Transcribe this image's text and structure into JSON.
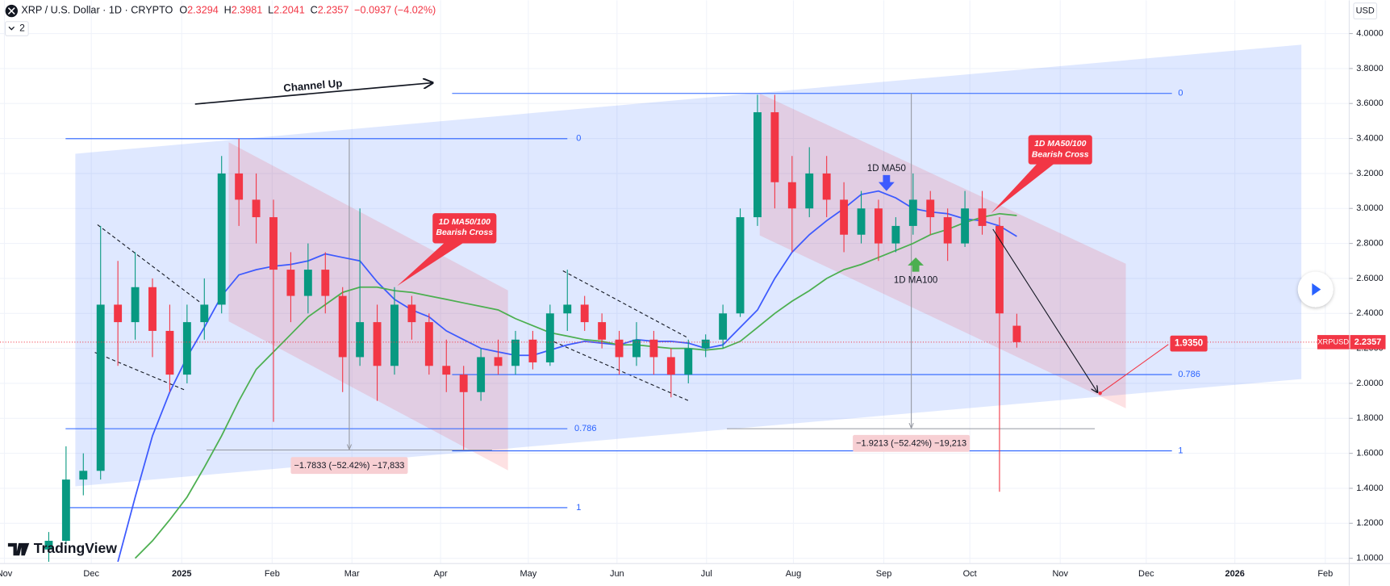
{
  "chart_data": {
    "type": "candlestick",
    "header": {
      "symbol": "XRP / U.S. Dollar · 1D · CRYPTO",
      "o_label": "O",
      "o": "2.3294",
      "h_label": "H",
      "h": "2.3981",
      "l_label": "L",
      "l": "2.2041",
      "c_label": "C",
      "c": "2.2357",
      "change": "−0.0937 (−4.02%)",
      "indicators": "2"
    },
    "currency": "USD",
    "logo": "TradingView",
    "x_axis_labels": [
      "Nov",
      "Dec",
      "2025",
      "Feb",
      "Mar",
      "Apr",
      "May",
      "Jun",
      "Jul",
      "Aug",
      "Sep",
      "Oct",
      "Nov",
      "Dec",
      "2026",
      "Feb"
    ],
    "ylim": [
      0.97,
      4.19
    ],
    "yticks": [
      {
        "value": 1.0,
        "label": "1.0000"
      },
      {
        "value": 1.2,
        "label": "1.2000"
      },
      {
        "value": 1.4,
        "label": "1.4000"
      },
      {
        "value": 1.6,
        "label": "1.6000"
      },
      {
        "value": 1.8,
        "label": "1.8000"
      },
      {
        "value": 2.0,
        "label": "2.0000"
      },
      {
        "value": 2.2,
        "label": "2.2000"
      },
      {
        "value": 2.4,
        "label": "2.4000"
      },
      {
        "value": 2.6,
        "label": "2.6000"
      },
      {
        "value": 2.8,
        "label": "2.8000"
      },
      {
        "value": 3.0,
        "label": "3.0000"
      },
      {
        "value": 3.2,
        "label": "3.2000"
      },
      {
        "value": 3.4,
        "label": "3.4000"
      },
      {
        "value": 3.6,
        "label": "3.6000"
      },
      {
        "value": 3.8,
        "label": "3.8000"
      },
      {
        "value": 4.0,
        "label": "4.0000"
      }
    ],
    "grid": true,
    "up_color": "#089981",
    "down_color": "#f23645",
    "candles": {
      "open": [
        1.05,
        1.1,
        1.45,
        1.5,
        2.45,
        2.35,
        2.55,
        2.3,
        2.05,
        2.35,
        2.45,
        3.2,
        3.05,
        2.95,
        2.65,
        2.5,
        2.65,
        2.5,
        2.15,
        2.35,
        2.1,
        2.45,
        2.35,
        2.1,
        2.05,
        1.95,
        2.15,
        2.1,
        2.25,
        2.12,
        2.4,
        2.45,
        2.35,
        2.25,
        2.15,
        2.25,
        2.15,
        2.05,
        2.2,
        2.25,
        2.4,
        2.95,
        3.55,
        3.15,
        3.0,
        3.2,
        3.05,
        2.85,
        3.0,
        2.8,
        2.9,
        3.05,
        2.95,
        2.8,
        3.0,
        2.9,
        2.3294
      ],
      "high": [
        1.15,
        1.64,
        1.6,
        2.9,
        2.7,
        2.75,
        2.6,
        2.45,
        2.45,
        2.6,
        3.3,
        3.4,
        3.2,
        3.05,
        2.75,
        2.8,
        2.75,
        2.55,
        3.0,
        2.45,
        2.55,
        2.5,
        2.4,
        2.25,
        2.1,
        2.2,
        2.25,
        2.3,
        2.3,
        2.45,
        2.65,
        2.5,
        2.4,
        2.3,
        2.35,
        2.3,
        2.2,
        2.25,
        2.28,
        2.45,
        3.0,
        3.65,
        3.65,
        3.3,
        3.35,
        3.3,
        3.15,
        3.1,
        3.05,
        2.95,
        3.2,
        3.1,
        3.0,
        3.1,
        3.1,
        2.95,
        2.3981
      ],
      "low": [
        0.98,
        1.08,
        1.36,
        1.45,
        2.1,
        2.25,
        2.15,
        1.95,
        2.0,
        2.25,
        2.4,
        2.9,
        2.8,
        1.78,
        2.35,
        2.4,
        2.4,
        1.95,
        2.1,
        1.9,
        2.05,
        2.25,
        2.05,
        1.95,
        1.62,
        1.9,
        2.05,
        2.05,
        2.08,
        2.1,
        2.3,
        2.3,
        2.2,
        2.05,
        2.1,
        2.05,
        1.92,
        2.0,
        2.15,
        2.2,
        2.38,
        2.9,
        3.0,
        2.75,
        2.95,
        2.95,
        2.75,
        2.8,
        2.7,
        2.75,
        2.85,
        2.85,
        2.7,
        2.78,
        2.85,
        1.38,
        2.2041
      ],
      "close": [
        1.1,
        1.45,
        1.5,
        2.45,
        2.35,
        2.55,
        2.3,
        2.05,
        2.35,
        2.45,
        3.2,
        3.05,
        2.95,
        2.65,
        2.5,
        2.65,
        2.5,
        2.15,
        2.35,
        2.1,
        2.45,
        2.35,
        2.1,
        2.05,
        1.95,
        2.15,
        2.1,
        2.25,
        2.12,
        2.4,
        2.45,
        2.35,
        2.25,
        2.15,
        2.25,
        2.15,
        2.05,
        2.2,
        2.25,
        2.4,
        2.95,
        3.55,
        3.15,
        3.0,
        3.2,
        3.05,
        2.85,
        3.0,
        2.8,
        2.9,
        3.05,
        2.95,
        2.8,
        3.0,
        2.9,
        2.4,
        2.2357
      ]
    },
    "lines": [
      {
        "color": "#3d5afe",
        "values": [
          null,
          null,
          null,
          null,
          0.98,
          1.35,
          1.7,
          1.95,
          2.15,
          2.32,
          2.5,
          2.62,
          2.65,
          2.67,
          2.68,
          2.7,
          2.74,
          2.72,
          2.7,
          2.58,
          2.48,
          2.42,
          2.38,
          2.3,
          2.25,
          2.2,
          2.18,
          2.16,
          2.16,
          2.19,
          2.22,
          2.24,
          2.23,
          2.22,
          2.25,
          2.24,
          2.24,
          2.23,
          2.2,
          2.22,
          2.32,
          2.42,
          2.6,
          2.75,
          2.85,
          2.93,
          3.0,
          3.08,
          3.1,
          3.06,
          3.0,
          2.98,
          2.97,
          2.94,
          2.93,
          2.9,
          2.84
        ]
      },
      {
        "color": "#4caf50",
        "values": [
          null,
          null,
          null,
          null,
          null,
          1.0,
          1.1,
          1.22,
          1.35,
          1.52,
          1.7,
          1.9,
          2.08,
          2.18,
          2.28,
          2.38,
          2.45,
          2.52,
          2.55,
          2.55,
          2.53,
          2.52,
          2.5,
          2.48,
          2.46,
          2.44,
          2.42,
          2.37,
          2.33,
          2.29,
          2.27,
          2.25,
          2.24,
          2.22,
          2.22,
          2.21,
          2.2,
          2.2,
          2.19,
          2.2,
          2.24,
          2.32,
          2.4,
          2.47,
          2.53,
          2.6,
          2.65,
          2.68,
          2.72,
          2.76,
          2.8,
          2.85,
          2.88,
          2.92,
          2.95,
          2.97,
          2.96
        ]
      }
    ],
    "price_tag": {
      "symbol": "XRPUSD",
      "value": 2.2357
    },
    "annotations": {
      "channel_up": "Channel Up",
      "cross_1": [
        "1D MA50/100",
        "Bearish Cross"
      ],
      "cross_2": [
        "1D MA50/100",
        "Bearish Cross"
      ],
      "ma50_label": "1D MA50",
      "ma100_label": "1D MA100",
      "measure_1": "−1.7833 (−52.42%) −17,833",
      "measure_2": "−1.9213 (−52.42%) −19,213",
      "fib_1": [
        "0",
        "0.786",
        "1"
      ],
      "fib_2": [
        "0",
        "0.786",
        "1"
      ],
      "target": "1.9350"
    }
  }
}
